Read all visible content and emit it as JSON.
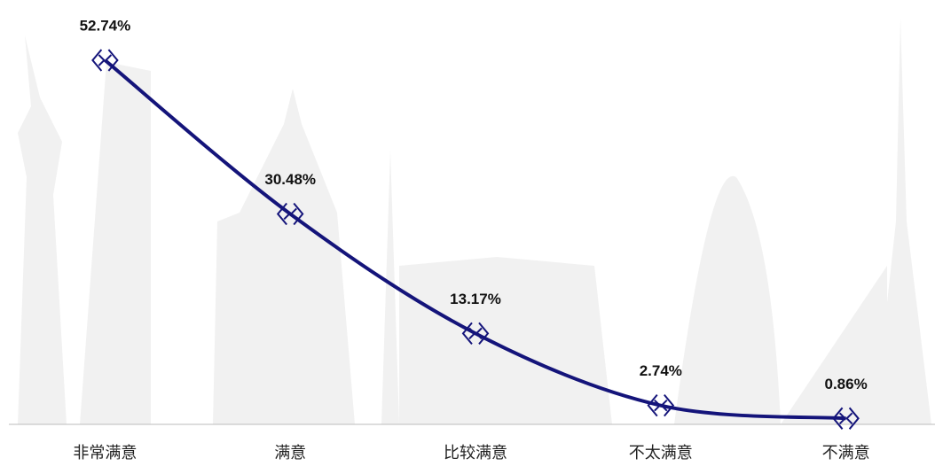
{
  "chart_data": {
    "type": "line",
    "categories": [
      "非常满意",
      "满意",
      "比较满意",
      "不太满意",
      "不满意"
    ],
    "series": [
      {
        "color": "#14147a",
        "values": [
          52.74,
          30.48,
          13.17,
          2.74,
          0.86
        ],
        "value_labels": [
          "52.74%",
          "30.48%",
          "13.17%",
          "2.74%",
          "0.86%"
        ]
      }
    ]
  }
}
